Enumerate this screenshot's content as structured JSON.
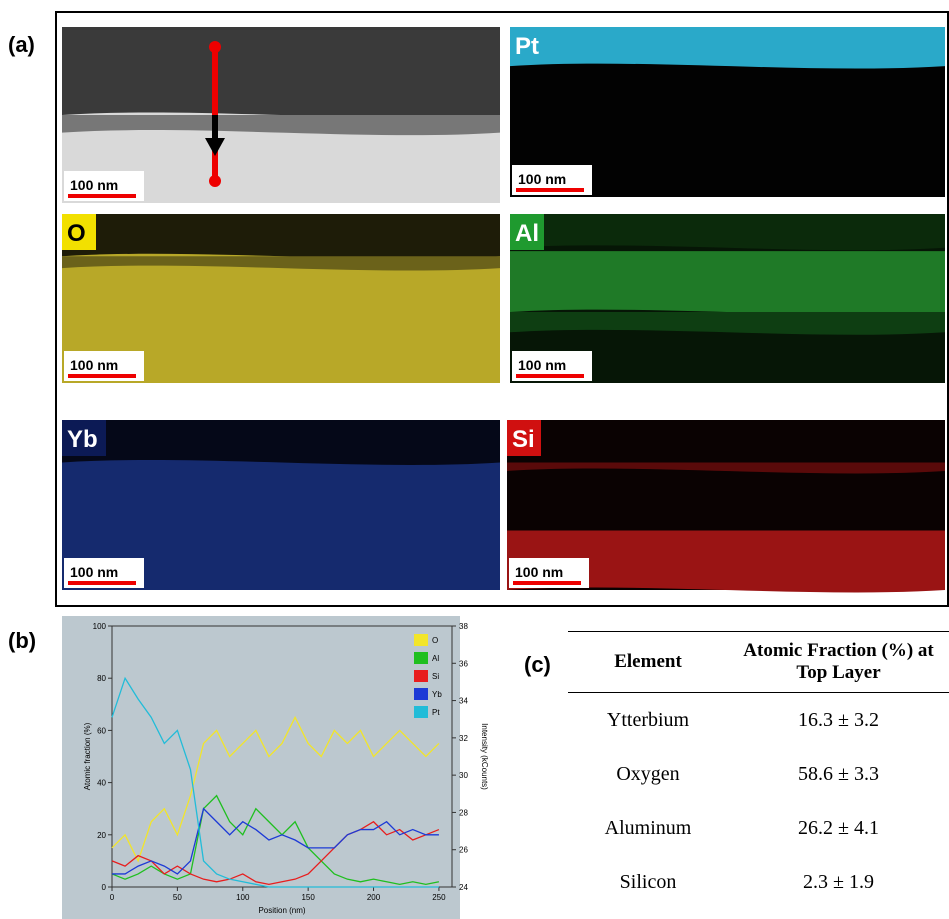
{
  "panel_labels": [
    "(a)",
    "(b)",
    "(c)"
  ],
  "panel_a": {
    "maps": [
      {
        "scale_bar": "100 nm"
      },
      {
        "label": "Pt",
        "scale_bar": "100 nm"
      },
      {
        "label": "O",
        "scale_bar": "100 nm"
      },
      {
        "label": "Al",
        "scale_bar": "100 nm"
      },
      {
        "label": "Yb",
        "scale_bar": "100 nm"
      },
      {
        "label": "Si",
        "scale_bar": "100 nm"
      }
    ]
  },
  "chart_data": {
    "type": "line",
    "xlabel": "Position (nm)",
    "ylabel": "Atomic fraction (%)",
    "y2label": "Intensity (kCounts)",
    "x": [
      0,
      10,
      20,
      30,
      40,
      50,
      60,
      70,
      80,
      90,
      100,
      110,
      120,
      130,
      140,
      150,
      160,
      170,
      180,
      190,
      200,
      210,
      220,
      230,
      240,
      250
    ],
    "xlim": [
      0,
      260
    ],
    "xticks": [
      0,
      50,
      100,
      150,
      200,
      250
    ],
    "ylim": [
      0,
      100
    ],
    "yticks": [
      0,
      20,
      40,
      60,
      80,
      100
    ],
    "y2lim": [
      24,
      38
    ],
    "y2ticks": [
      24,
      26,
      28,
      30,
      32,
      34,
      36,
      38
    ],
    "series": [
      {
        "name": "O",
        "color": "#f2e52a",
        "values": [
          15,
          20,
          10,
          25,
          30,
          20,
          35,
          55,
          60,
          50,
          55,
          60,
          50,
          55,
          65,
          55,
          50,
          60,
          55,
          60,
          50,
          55,
          60,
          55,
          50,
          55
        ]
      },
      {
        "name": "Al",
        "color": "#1fbf1f",
        "values": [
          5,
          3,
          5,
          8,
          5,
          3,
          5,
          30,
          35,
          25,
          20,
          30,
          25,
          20,
          25,
          15,
          10,
          5,
          3,
          2,
          3,
          2,
          1,
          2,
          1,
          2
        ]
      },
      {
        "name": "Si",
        "color": "#e81d1d",
        "values": [
          10,
          8,
          12,
          10,
          5,
          8,
          5,
          3,
          2,
          3,
          5,
          2,
          1,
          2,
          3,
          5,
          10,
          15,
          20,
          22,
          25,
          20,
          22,
          18,
          20,
          22
        ]
      },
      {
        "name": "Yb",
        "color": "#1d3ad6",
        "values": [
          5,
          5,
          8,
          10,
          8,
          5,
          10,
          30,
          25,
          20,
          25,
          22,
          18,
          20,
          18,
          15,
          15,
          15,
          20,
          22,
          22,
          25,
          20,
          22,
          20,
          20
        ]
      },
      {
        "name": "Pt",
        "color": "#22bcd8",
        "values": [
          65,
          80,
          72,
          65,
          55,
          60,
          45,
          10,
          5,
          3,
          2,
          1,
          0,
          0,
          0,
          0,
          0,
          0,
          0,
          0,
          0,
          0,
          0,
          0,
          0,
          0
        ]
      }
    ]
  },
  "table": {
    "header": [
      "Element",
      "Atomic Fraction (%) at Top Layer"
    ],
    "rows": [
      [
        "Ytterbium",
        "16.3 ± 3.2"
      ],
      [
        "Oxygen",
        "58.6 ± 3.3"
      ],
      [
        "Aluminum",
        "26.2 ± 4.1"
      ],
      [
        "Silicon",
        "2.3 ± 1.9"
      ]
    ]
  }
}
